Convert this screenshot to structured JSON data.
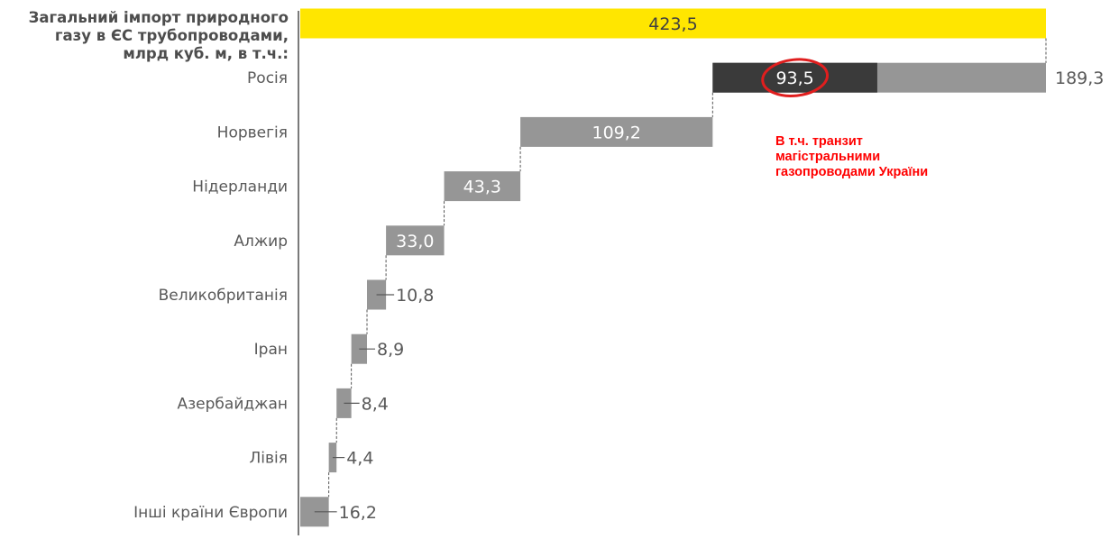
{
  "chart_data": {
    "type": "bar",
    "orientation": "horizontal",
    "variant": "waterfall",
    "total": {
      "label_lines": [
        "Загальний імпорт природного",
        "газу в ЄС трубопроводами,",
        "млрд куб. м, в т.ч.:"
      ],
      "value": 423.5,
      "value_label": "423,5",
      "color": "#ffe600"
    },
    "categories": [
      "Росія",
      "Норвегія",
      "Нідерланди",
      "Алжир",
      "Великобританія",
      "Іран",
      "Азербайджан",
      "Лівія",
      "Інші країни Європи"
    ],
    "values": [
      189.3,
      109.2,
      43.3,
      33.0,
      10.8,
      8.9,
      8.4,
      4.4,
      16.2
    ],
    "value_labels": [
      "189,3",
      "109,2",
      "43,3",
      "33,0",
      "10,8",
      "8,9",
      "8,4",
      "4,4",
      "16,2"
    ],
    "bar_color": "#969696",
    "highlight": {
      "category": "Росія",
      "value": 93.5,
      "value_label": "93,5",
      "color": "#3a3a3a",
      "circled": true,
      "circle_color": "#e01e1e"
    },
    "annotation": {
      "lines": [
        "В т.ч. транзит",
        "магістральними",
        "газопроводами України"
      ],
      "color": "#ff0000"
    },
    "xlim": [
      0,
      423.5
    ],
    "grid": false,
    "legend": "none"
  }
}
